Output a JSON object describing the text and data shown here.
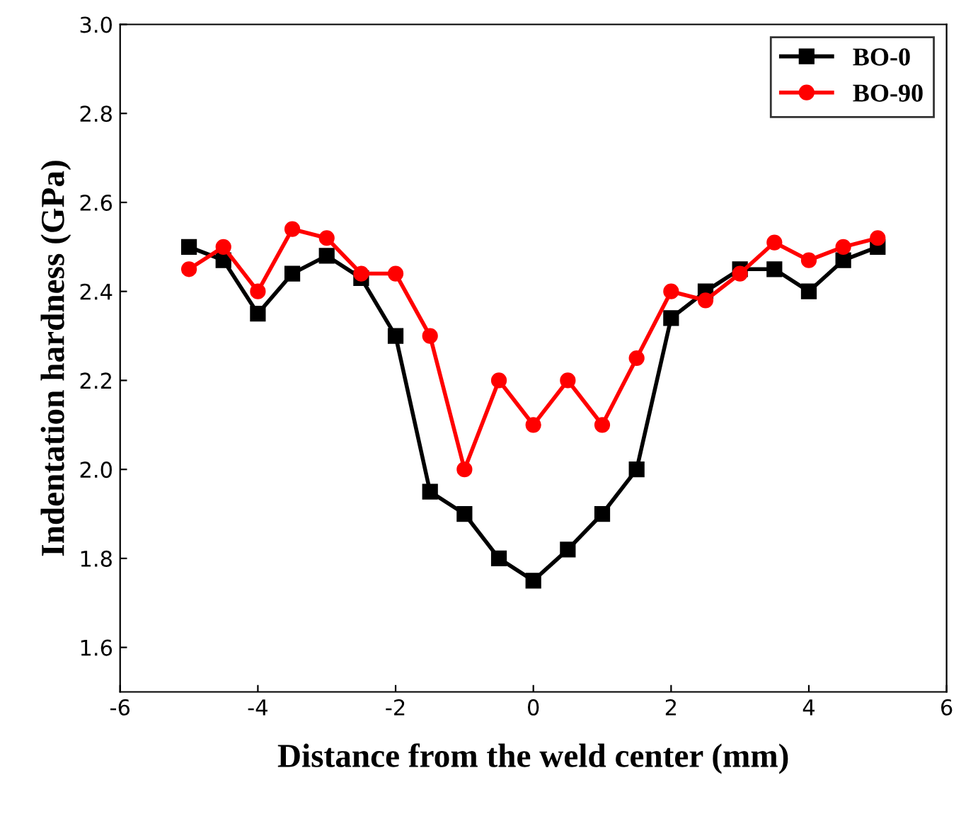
{
  "chart_data": {
    "type": "line",
    "xlabel": "Distance from the weld center (mm)",
    "ylabel": "Indentation hardness (GPa)",
    "x": [
      -5,
      -4.5,
      -4,
      -3.5,
      -3,
      -2.5,
      -2,
      -1.5,
      -1,
      -0.5,
      0,
      0.5,
      1,
      1.5,
      2,
      2.5,
      3,
      3.5,
      4,
      4.5,
      5
    ],
    "series": [
      {
        "name": "BO-0",
        "color": "#000000",
        "marker": "square",
        "values": [
          2.5,
          2.47,
          2.35,
          2.44,
          2.48,
          2.43,
          2.3,
          1.95,
          1.9,
          1.8,
          1.75,
          1.82,
          1.9,
          2.0,
          2.34,
          2.4,
          2.45,
          2.45,
          2.4,
          2.47,
          2.5
        ]
      },
      {
        "name": "BO-90",
        "color": "#ff0000",
        "marker": "circle",
        "values": [
          2.45,
          2.5,
          2.4,
          2.54,
          2.52,
          2.44,
          2.44,
          2.3,
          2.0,
          2.2,
          2.1,
          2.2,
          2.1,
          2.25,
          2.4,
          2.38,
          2.44,
          2.51,
          2.47,
          2.5,
          2.52
        ]
      }
    ],
    "xlim": [
      -6,
      6
    ],
    "xticks": [
      -6,
      -4,
      -2,
      0,
      2,
      4,
      6
    ],
    "ylim": [
      1.5,
      3.0
    ],
    "yticks": [
      1.6,
      1.8,
      {
        "value": 2,
        "label": "2.0"
      },
      2.2,
      2.4,
      2.6,
      2.8,
      {
        "value": 3,
        "label": "3.0"
      }
    ],
    "grid": false,
    "legend": "top right",
    "line_style": "solid"
  }
}
